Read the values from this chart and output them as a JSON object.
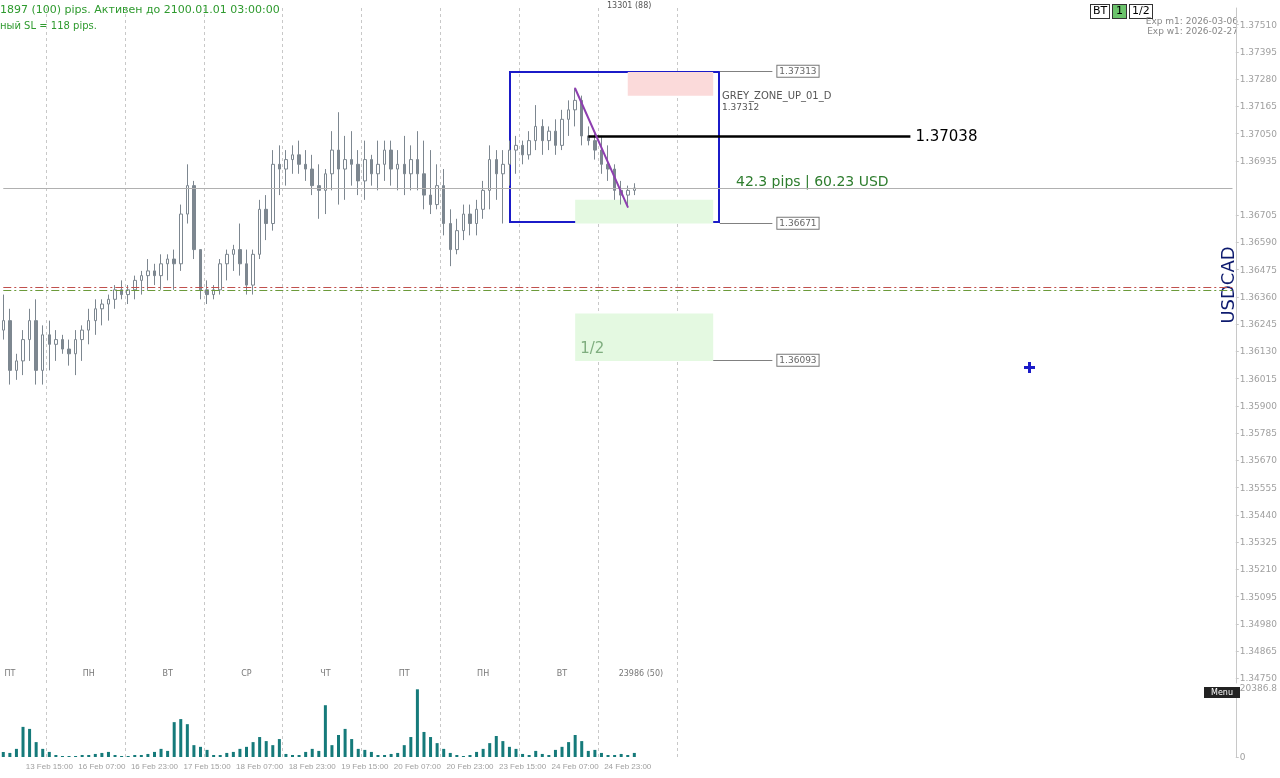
{
  "chart_data": [
    {
      "type": "candlestick",
      "ylabel": "USDCAD",
      "grid": "x",
      "tick_labels": "y",
      "categories": [
        null,
        null,
        null,
        null,
        null,
        null,
        null,
        "13 Feb 15:00",
        null,
        null,
        null,
        null,
        null,
        null,
        null,
        "16 Feb 07:00",
        null,
        null,
        null,
        null,
        null,
        null,
        null,
        "16 Feb 23:00",
        null,
        null,
        null,
        null,
        null,
        null,
        null,
        "17 Feb 15:00",
        null,
        null,
        null,
        null,
        null,
        null,
        null,
        "18 Feb 07:00",
        null,
        null,
        null,
        null,
        null,
        null,
        null,
        "18 Feb 23:00",
        null,
        null,
        null,
        null,
        null,
        null,
        null,
        "19 Feb 15:00",
        null,
        null,
        null,
        null,
        null,
        null,
        null,
        "20 Feb 07:00",
        null,
        null,
        null,
        null,
        null,
        null,
        null,
        "20 Feb 23:00",
        null,
        null,
        null,
        null,
        null,
        null,
        null,
        "23 Feb 15:00",
        null,
        null,
        null,
        null,
        null,
        null,
        null,
        "24 Feb 07:00",
        null,
        null,
        null,
        null,
        null,
        null,
        null,
        "24 Feb 23:00",
        null,
        null,
        null,
        null,
        null,
        null,
        null,
        null,
        null,
        null,
        null,
        null,
        null,
        null,
        null,
        null,
        null,
        null,
        null,
        null,
        null,
        null,
        null,
        null,
        null,
        null,
        null,
        null,
        null,
        null,
        null,
        null,
        null,
        null,
        null,
        null,
        null,
        null,
        null,
        null,
        null,
        null,
        null,
        null,
        null,
        null,
        null,
        null,
        null,
        null,
        null,
        null,
        null,
        null,
        null,
        null,
        null,
        null,
        null,
        null,
        null,
        null,
        null,
        null,
        null,
        null,
        null,
        null,
        null,
        null,
        null,
        null,
        null,
        null,
        null,
        null,
        null,
        null,
        null,
        null,
        null,
        null,
        null,
        null,
        null,
        null,
        null,
        null,
        null,
        null,
        null,
        null
      ],
      "series": [
        {
          "type": "candlestick",
          "color": "#7d8790",
          "ohlc": [
            [
              1.3622,
              1.3637,
              1.3618,
              1.3626
            ],
            [
              1.3626,
              1.3631,
              1.3599,
              1.3605
            ],
            [
              1.3605,
              1.3612,
              1.3601,
              1.3609
            ],
            [
              1.3609,
              1.3622,
              1.3603,
              1.3618
            ],
            [
              1.3618,
              1.3631,
              1.3609,
              1.3626
            ],
            [
              1.3626,
              1.3635,
              1.3599,
              1.3605
            ],
            [
              1.3605,
              1.3624,
              1.3599,
              1.362
            ],
            [
              1.362,
              1.3626,
              1.3605,
              1.3616
            ],
            [
              1.3616,
              1.3622,
              1.3609,
              1.3618
            ],
            [
              1.3618,
              1.362,
              1.3612,
              1.3614
            ],
            [
              1.3614,
              1.3618,
              1.3607,
              1.3612
            ],
            [
              1.3612,
              1.3622,
              1.3603,
              1.3618
            ],
            [
              1.3618,
              1.3624,
              1.3609,
              1.3622
            ],
            [
              1.3622,
              1.3631,
              1.3616,
              1.3626
            ],
            [
              1.3626,
              1.3635,
              1.362,
              1.3631
            ],
            [
              1.3631,
              1.3635,
              1.3624,
              1.3633
            ],
            [
              1.3633,
              1.3637,
              1.3626,
              1.3635
            ],
            [
              1.3635,
              1.3641,
              1.3631,
              1.3639
            ],
            [
              1.3639,
              1.3643,
              1.3635,
              1.3637
            ],
            [
              1.3637,
              1.3641,
              1.3633,
              1.3639
            ],
            [
              1.3639,
              1.3645,
              1.3635,
              1.3643
            ],
            [
              1.3643,
              1.3647,
              1.3637,
              1.3645
            ],
            [
              1.3645,
              1.3652,
              1.3639,
              1.3647
            ],
            [
              1.3647,
              1.365,
              1.3641,
              1.3645
            ],
            [
              1.3645,
              1.3654,
              1.3639,
              1.365
            ],
            [
              1.365,
              1.3654,
              1.3643,
              1.3652
            ],
            [
              1.3652,
              1.3656,
              1.3639,
              1.365
            ],
            [
              1.365,
              1.3675,
              1.3647,
              1.3671
            ],
            [
              1.3671,
              1.3692,
              1.3667,
              1.3683
            ],
            [
              1.3683,
              1.3685,
              1.3652,
              1.3656
            ],
            [
              1.3656,
              1.3656,
              1.3635,
              1.3639
            ],
            [
              1.3639,
              1.3643,
              1.3633,
              1.3637
            ],
            [
              1.3637,
              1.3641,
              1.3635,
              1.3639
            ],
            [
              1.3639,
              1.3652,
              1.3637,
              1.365
            ],
            [
              1.365,
              1.3656,
              1.3643,
              1.3654
            ],
            [
              1.3654,
              1.3658,
              1.3647,
              1.3656
            ],
            [
              1.3656,
              1.3667,
              1.3645,
              1.365
            ],
            [
              1.365,
              1.3656,
              1.3637,
              1.3641
            ],
            [
              1.3641,
              1.3656,
              1.3637,
              1.3654
            ],
            [
              1.3654,
              1.3677,
              1.3652,
              1.3673
            ],
            [
              1.3673,
              1.3679,
              1.366,
              1.3667
            ],
            [
              1.3667,
              1.3698,
              1.3664,
              1.3692
            ],
            [
              1.3692,
              1.37,
              1.3679,
              1.369
            ],
            [
              1.369,
              1.3698,
              1.3683,
              1.3694
            ],
            [
              1.3694,
              1.37,
              1.3688,
              1.3696
            ],
            [
              1.3696,
              1.3702,
              1.3688,
              1.3692
            ],
            [
              1.3692,
              1.3698,
              1.3685,
              1.369
            ],
            [
              1.369,
              1.3696,
              1.3679,
              1.3683
            ],
            [
              1.3683,
              1.3692,
              1.3669,
              1.3681
            ],
            [
              1.3681,
              1.369,
              1.3671,
              1.3688
            ],
            [
              1.3688,
              1.3706,
              1.3681,
              1.3698
            ],
            [
              1.3698,
              1.3714,
              1.3675,
              1.369
            ],
            [
              1.369,
              1.3704,
              1.3677,
              1.3694
            ],
            [
              1.3694,
              1.3706,
              1.3683,
              1.3692
            ],
            [
              1.3692,
              1.3698,
              1.3679,
              1.3685
            ],
            [
              1.3685,
              1.3702,
              1.3677,
              1.3694
            ],
            [
              1.3694,
              1.3696,
              1.3683,
              1.3688
            ],
            [
              1.3688,
              1.3702,
              1.3681,
              1.3692
            ],
            [
              1.3692,
              1.3702,
              1.3685,
              1.3698
            ],
            [
              1.3698,
              1.3702,
              1.3683,
              1.369
            ],
            [
              1.369,
              1.3698,
              1.3681,
              1.3692
            ],
            [
              1.3692,
              1.3704,
              1.3679,
              1.3688
            ],
            [
              1.3688,
              1.37,
              1.3681,
              1.3694
            ],
            [
              1.3694,
              1.3706,
              1.3681,
              1.3688
            ],
            [
              1.3688,
              1.3702,
              1.3673,
              1.3679
            ],
            [
              1.3679,
              1.3698,
              1.3671,
              1.3675
            ],
            [
              1.3675,
              1.3692,
              1.3673,
              1.3683
            ],
            [
              1.3683,
              1.369,
              1.3662,
              1.3667
            ],
            [
              1.3667,
              1.3673,
              1.3649,
              1.3656
            ],
            [
              1.3656,
              1.3669,
              1.3654,
              1.3664
            ],
            [
              1.3664,
              1.3675,
              1.366,
              1.3671
            ],
            [
              1.3671,
              1.3675,
              1.3662,
              1.3667
            ],
            [
              1.3667,
              1.3677,
              1.3662,
              1.3673
            ],
            [
              1.3673,
              1.3685,
              1.3669,
              1.3681
            ],
            [
              1.3681,
              1.37,
              1.3673,
              1.3694
            ],
            [
              1.3694,
              1.3698,
              1.3677,
              1.3688
            ],
            [
              1.3688,
              1.3698,
              1.3667,
              1.3692
            ],
            [
              1.3692,
              1.3702,
              1.3683,
              1.3698
            ],
            [
              1.3698,
              1.3704,
              1.3688,
              1.37
            ],
            [
              1.37,
              1.3702,
              1.3692,
              1.3696
            ],
            [
              1.3696,
              1.3706,
              1.3694,
              1.3702
            ],
            [
              1.3702,
              1.3717,
              1.3698,
              1.3708
            ],
            [
              1.3708,
              1.3711,
              1.3696,
              1.3702
            ],
            [
              1.3702,
              1.3708,
              1.3698,
              1.3706
            ],
            [
              1.3706,
              1.3711,
              1.3696,
              1.37
            ],
            [
              1.37,
              1.3715,
              1.3698,
              1.3711
            ],
            [
              1.3711,
              1.3719,
              1.3704,
              1.3715
            ],
            [
              1.3715,
              1.3724,
              1.3708,
              1.3719
            ],
            [
              1.3719,
              1.3721,
              1.37,
              1.3704
            ],
            [
              1.3704,
              1.3708,
              1.37,
              1.3702
            ],
            [
              1.3702,
              1.3706,
              1.3694,
              1.3698
            ],
            [
              1.3698,
              1.3704,
              1.3688,
              1.3692
            ],
            [
              1.3692,
              1.37,
              1.3685,
              1.369
            ],
            [
              1.369,
              1.3692,
              1.3677,
              1.3681
            ],
            [
              1.3681,
              1.3685,
              1.3675,
              1.3679
            ],
            [
              1.3679,
              1.3683,
              1.3674,
              1.3681
            ],
            [
              1.3681,
              1.3684,
              1.3679,
              1.3682
            ],
            null,
            null,
            null,
            null,
            null,
            null,
            null,
            null,
            null,
            null,
            null,
            null,
            null,
            null,
            null,
            null,
            null,
            null,
            null,
            null,
            null,
            null,
            null,
            null,
            null,
            null,
            null,
            null,
            null,
            null,
            null,
            null,
            null,
            null,
            null,
            null,
            null,
            null,
            null,
            null,
            null,
            null,
            null,
            null,
            null,
            null,
            null,
            null,
            null,
            null,
            null,
            null,
            null,
            null,
            null,
            null,
            null,
            null,
            null,
            null,
            null,
            null,
            null,
            null,
            null,
            null,
            null,
            null,
            null,
            null,
            null,
            null,
            null,
            null,
            null,
            null,
            null,
            null,
            null,
            null,
            null,
            null,
            null,
            null,
            null,
            null,
            null,
            null,
            null,
            null,
            null
          ]
        },
        {
          "type": "line",
          "color": "#8e3fb0",
          "x": [
            "24 Feb 07:00",
            "24 Feb 23:00"
          ],
          "values": [
            1.3724,
            1.3674
          ]
        }
      ],
      "ylim": [
        1.3473,
        1.3758
      ],
      "yticks": [
        {
          "value": 1.3475,
          "label": "1.34750"
        },
        1.34865,
        {
          "value": 1.3498,
          "label": "1.34980"
        },
        1.35095,
        {
          "value": 1.3521,
          "label": "1.35210"
        },
        1.35325,
        {
          "value": 1.3544,
          "label": "1.35440"
        },
        1.35555,
        {
          "value": 1.3567,
          "label": "1.35670"
        },
        1.35785,
        {
          "value": 1.359,
          "label": "1.35900"
        },
        1.36015,
        {
          "value": 1.3613,
          "label": "1.36130"
        },
        1.36245,
        {
          "value": 1.3636,
          "label": "1.36360"
        },
        1.36475,
        {
          "value": 1.3659,
          "label": "1.36590"
        },
        1.36705,
        1.36935,
        {
          "value": 1.3705,
          "label": "1.37050"
        },
        1.37165,
        {
          "value": 1.3728,
          "label": "1.37280"
        },
        1.37395,
        {
          "value": 1.3751,
          "label": "1.37510"
        }
      ],
      "ref_lines": [
        {
          "axis": "y",
          "value": 1.37313,
          "label": "1.37313",
          "color": "#808080"
        },
        {
          "axis": "y",
          "value": 1.36671,
          "label": "1.36671",
          "color": "#808080"
        },
        {
          "axis": "y",
          "value": 1.36093,
          "label": "1.36093",
          "color": "#808080"
        },
        {
          "axis": "y",
          "value": 1.37038,
          "label": "1.37038",
          "color": "#000000"
        },
        {
          "axis": "y",
          "value": 1.3682,
          "color": "#b0b0b0"
        },
        {
          "axis": "y",
          "value": 1.364,
          "color": "#c0504d",
          "line_style": "dashed"
        },
        {
          "axis": "y",
          "value": 1.3639,
          "color": "#6b9a3a",
          "line_style": "dashed"
        }
      ],
      "bands": [
        {
          "axis": "y",
          "from": 1.3731,
          "to": 1.3721,
          "color": "#fbdada"
        },
        {
          "axis": "y",
          "from": 1.3677,
          "to": 1.3667,
          "color": "#e4f9e1"
        },
        {
          "axis": "y",
          "from": 1.3629,
          "to": 1.3609,
          "label": "1/2",
          "color": "#e4f9e1"
        }
      ],
      "annotations": [
        "1897 (100) pips. Активен до 2100.01.01 03:00:00",
        "ный SL = 118 pips.",
        "13301 (88)",
        "BT",
        "1",
        "1/2",
        "Exp m1: 2026-03-06",
        "Exp w1: 2026-02-27",
        "GREY_ZONE_UP_01_D",
        "1.37312",
        "42.3 pips | 60.23 USD",
        "Menu"
      ]
    },
    {
      "type": "bar",
      "grid": "x",
      "color": "#157a7a",
      "categories": [
        null,
        null,
        null,
        null,
        null,
        null,
        null,
        "13 Feb 15:00",
        null,
        null,
        null,
        null,
        null,
        null,
        null,
        "16 Feb 07:00",
        null,
        null,
        null,
        null,
        null,
        null,
        null,
        "16 Feb 23:00",
        null,
        null,
        null,
        null,
        null,
        null,
        null,
        "17 Feb 15:00",
        null,
        null,
        null,
        null,
        null,
        null,
        null,
        "18 Feb 07:00",
        null,
        null,
        null,
        null,
        null,
        null,
        null,
        "18 Feb 23:00",
        null,
        null,
        null,
        null,
        null,
        null,
        null,
        "19 Feb 15:00",
        null,
        null,
        null,
        null,
        null,
        null,
        null,
        "20 Feb 07:00",
        null,
        null,
        null,
        null,
        null,
        null,
        null,
        "20 Feb 23:00",
        null,
        null,
        null,
        null,
        null,
        null,
        null,
        "23 Feb 15:00",
        null,
        null,
        null,
        null,
        null,
        null,
        null,
        "24 Feb 07:00",
        null,
        null,
        null,
        null,
        null,
        null,
        null,
        "24 Feb 23:00",
        null,
        null,
        null,
        null,
        null,
        null,
        null,
        null,
        null,
        null,
        null,
        null,
        null,
        null,
        null,
        null,
        null,
        null,
        null,
        null,
        null,
        null,
        null,
        null,
        null,
        null,
        null,
        null,
        null,
        null,
        null,
        null,
        null,
        null,
        null,
        null,
        null,
        null,
        null,
        null,
        null,
        null,
        null,
        null,
        null,
        null,
        null,
        null,
        null,
        null,
        null,
        null,
        null,
        null,
        null,
        null,
        null,
        null,
        null,
        null,
        null,
        null,
        null,
        null,
        null,
        null,
        null,
        null,
        null,
        null,
        null,
        null,
        null,
        null,
        null,
        null,
        null,
        null,
        null,
        null,
        null,
        null,
        null,
        null,
        null,
        null,
        null,
        null,
        null,
        null,
        null,
        null
      ],
      "values": [
        1500,
        1200,
        2400,
        8900,
        8300,
        4400,
        2400,
        1500,
        600,
        300,
        300,
        300,
        600,
        600,
        900,
        1200,
        1500,
        600,
        300,
        300,
        600,
        600,
        900,
        1500,
        2400,
        1800,
        10300,
        11200,
        9700,
        3500,
        3000,
        2100,
        600,
        600,
        1200,
        1500,
        2400,
        3000,
        4400,
        5900,
        4700,
        3500,
        5300,
        900,
        600,
        600,
        1500,
        2400,
        1800,
        15300,
        3500,
        6500,
        8300,
        5300,
        2400,
        2100,
        1500,
        600,
        600,
        900,
        1200,
        3500,
        5900,
        20000,
        7400,
        5900,
        4100,
        2400,
        1200,
        600,
        300,
        600,
        1500,
        2400,
        4100,
        6200,
        4700,
        3000,
        2400,
        900,
        600,
        1800,
        900,
        600,
        2100,
        3000,
        4400,
        6500,
        4700,
        1800,
        2100,
        1200,
        600,
        600,
        900,
        600,
        1200,
        null,
        null,
        null,
        null,
        null,
        null,
        null,
        null,
        null,
        null,
        null,
        null,
        null,
        null,
        null,
        null,
        null,
        null,
        null,
        null,
        null,
        null,
        null,
        null,
        null,
        null,
        null,
        null,
        null,
        null,
        null,
        null,
        null,
        null,
        null,
        null,
        null,
        null,
        null,
        null,
        null,
        null,
        null,
        null,
        null,
        null,
        null,
        null,
        null,
        null,
        null,
        null,
        null,
        null,
        null,
        null,
        null,
        null,
        null,
        null,
        null,
        null,
        null,
        null,
        null,
        null,
        null,
        null,
        null,
        null,
        null,
        null,
        null,
        null,
        null,
        null,
        null,
        null,
        null,
        null,
        null,
        null,
        null,
        null,
        null,
        null,
        null,
        null,
        null,
        null,
        null
      ],
      "ylim": [
        0,
        20386.8
      ],
      "yticks": [
        0,
        20386.8
      ],
      "annotations": [
        "ПТ",
        "ПН",
        "ВТ",
        "СР",
        "ЧТ",
        "ПТ",
        "ПН",
        "ВТ",
        "23986 (50)"
      ]
    }
  ]
}
